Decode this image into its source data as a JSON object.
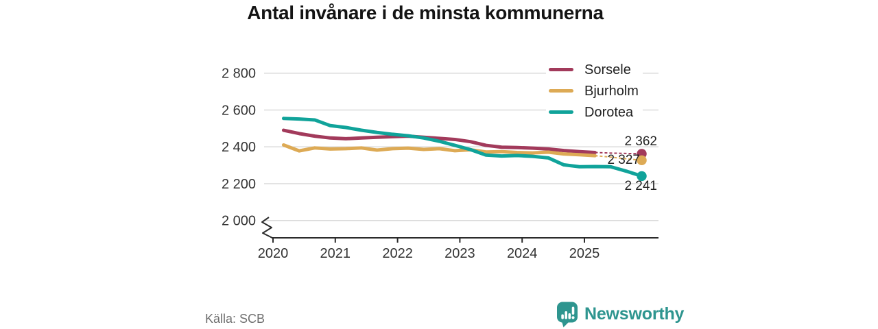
{
  "title": "Antal invånare i de minsta kommunerna",
  "source": "Källa: SCB",
  "branding": {
    "logo_text": "Newsworthy",
    "logo_icon": "bar-chart-speech-bubble-icon",
    "logo_color": "#2e958f"
  },
  "colors": {
    "gridline": "#dadada",
    "axis": "#2b2b2b",
    "text_dark": "#222222",
    "text_muted": "#6f6f6f"
  },
  "chart_data": {
    "type": "line",
    "title": "Antal invånare i de minsta kommunerna",
    "xlabel": "",
    "ylabel": "",
    "grid": true,
    "legend_position": "top-right",
    "axis_break_at_bottom": true,
    "ylim": [
      2000,
      2800
    ],
    "yticks": [
      {
        "value": 2800,
        "label": "2 800"
      },
      {
        "value": 2600,
        "label": "2 600"
      },
      {
        "value": 2400,
        "label": "2 400"
      },
      {
        "value": 2200,
        "label": "2 200"
      },
      {
        "value": 2000,
        "label": "2 000"
      }
    ],
    "xticks": [
      2020,
      2021,
      2022,
      2023,
      2024,
      2025
    ],
    "x_years": [
      2020.17,
      2020.42,
      2020.67,
      2020.92,
      2021.17,
      2021.42,
      2021.67,
      2021.92,
      2022.17,
      2022.42,
      2022.67,
      2022.92,
      2023.17,
      2023.42,
      2023.67,
      2023.92,
      2024.17,
      2024.42,
      2024.67,
      2024.92,
      2025.17,
      2025.42,
      2025.67,
      2025.92
    ],
    "series": [
      {
        "name": "Sorsele",
        "color": "#a23a5b",
        "end_label": "2 362",
        "end_value": 2362,
        "dashed_from_index": 20,
        "values": [
          2490,
          2472,
          2458,
          2448,
          2444,
          2448,
          2452,
          2455,
          2458,
          2452,
          2446,
          2440,
          2428,
          2408,
          2398,
          2396,
          2393,
          2388,
          2380,
          2374,
          2369,
          2366,
          2364,
          2362
        ]
      },
      {
        "name": "Bjurholm",
        "color": "#ddaa55",
        "end_label": "2 327",
        "end_value": 2327,
        "dashed_from_index": 20,
        "values": [
          2410,
          2378,
          2394,
          2388,
          2390,
          2394,
          2382,
          2390,
          2393,
          2386,
          2390,
          2379,
          2384,
          2372,
          2374,
          2369,
          2367,
          2371,
          2361,
          2357,
          2352,
          2344,
          2335,
          2327
        ]
      },
      {
        "name": "Dorotea",
        "color": "#10a39a",
        "end_label": "2 241",
        "end_value": 2241,
        "dashed_from_index": null,
        "values": [
          2554,
          2551,
          2546,
          2515,
          2505,
          2490,
          2478,
          2468,
          2460,
          2448,
          2430,
          2408,
          2385,
          2355,
          2350,
          2353,
          2348,
          2340,
          2302,
          2292,
          2293,
          2292,
          2268,
          2241
        ]
      }
    ]
  }
}
